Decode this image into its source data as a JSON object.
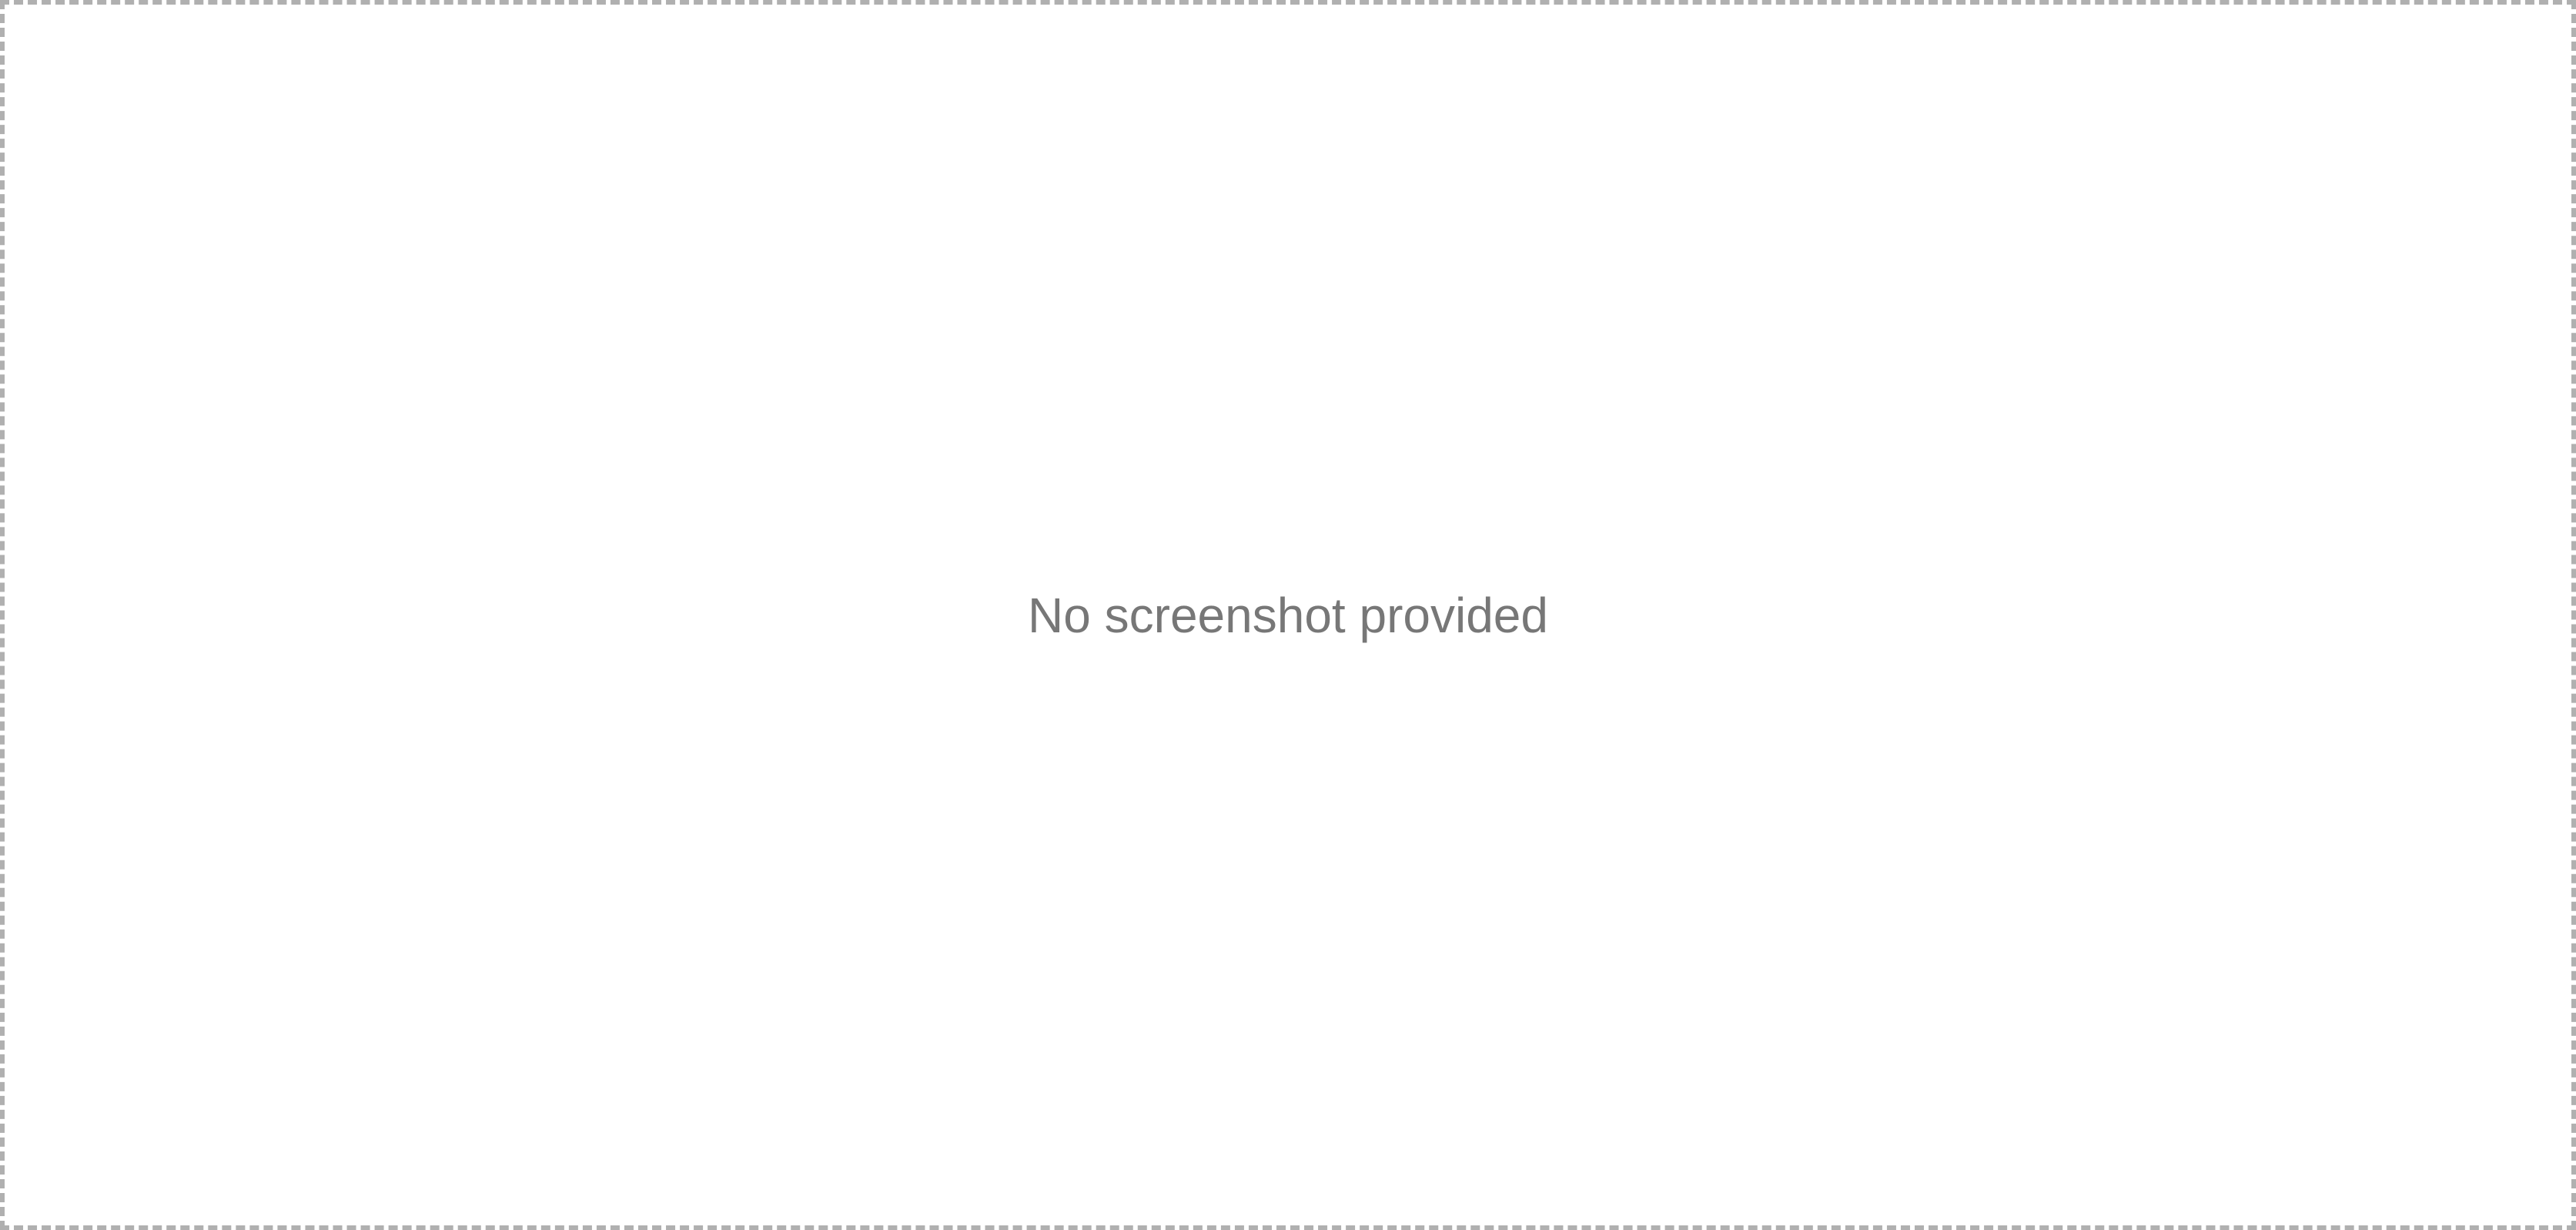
{
  "placeholder": {
    "message": "No screenshot provided"
  }
}
